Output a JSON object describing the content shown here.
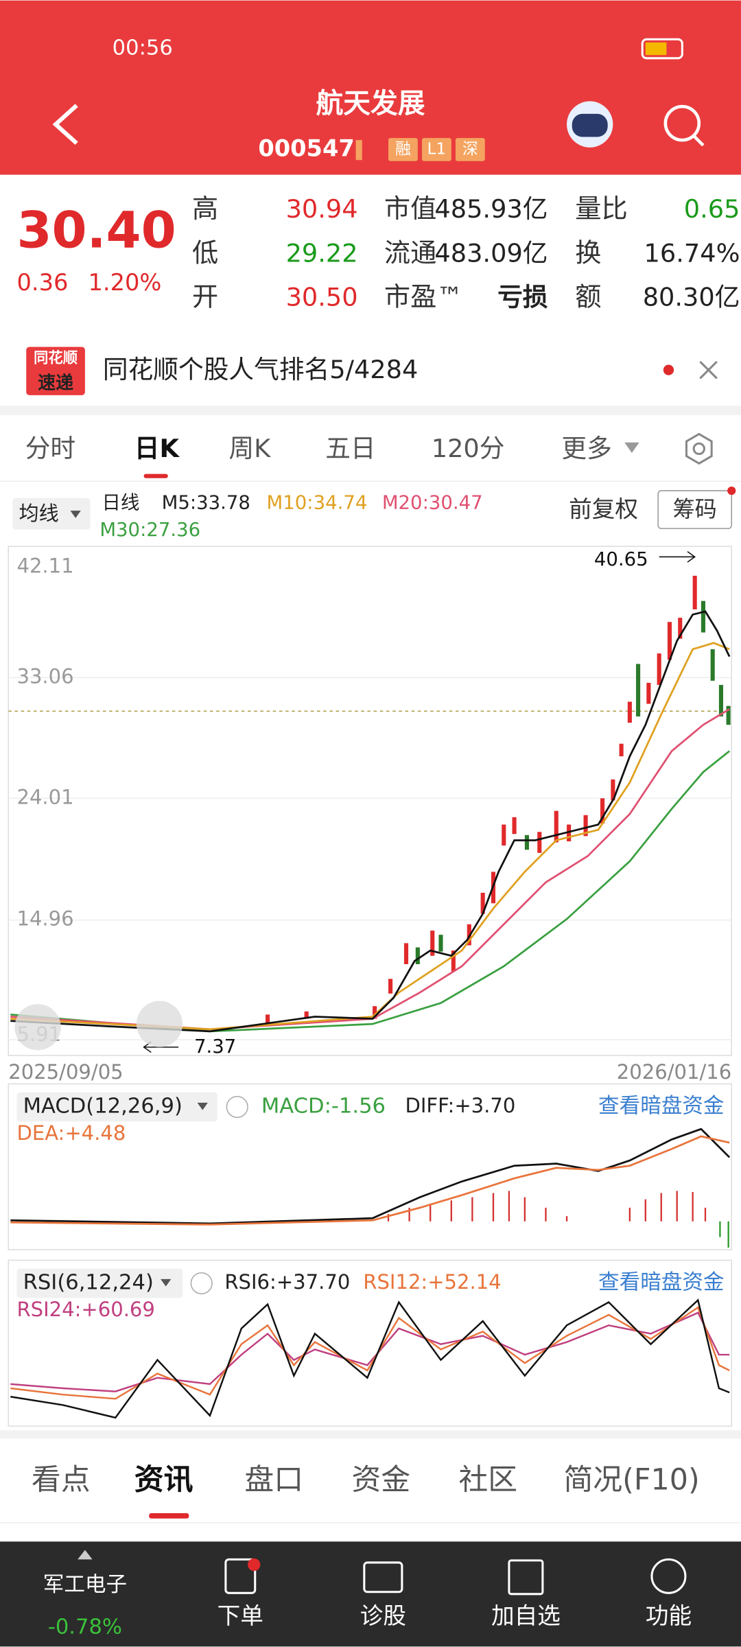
{
  "status": {
    "time": "00:56"
  },
  "header": {
    "title": "航天发展",
    "code": "000547",
    "tags": [
      "融",
      "L1",
      "深"
    ]
  },
  "quote": {
    "price": "30.40",
    "change": "0.36",
    "change_pct": "1.20%",
    "columns": [
      [
        [
          "高",
          "30.94"
        ],
        [
          "低",
          "29.22"
        ],
        [
          "开",
          "30.50"
        ]
      ],
      [
        [
          "市值",
          "485.93亿"
        ],
        [
          "流通",
          "483.09亿"
        ],
        [
          "市盈™",
          "亏损"
        ]
      ],
      [
        [
          "量比",
          "0.65"
        ],
        [
          "换",
          "16.74%"
        ],
        [
          "额",
          "80.30亿"
        ]
      ]
    ]
  },
  "banner": {
    "logo": [
      "同花顺",
      "速递"
    ],
    "text": "同花顺个股人气排名5/4284"
  },
  "tabs": [
    "分时",
    "日K",
    "周K",
    "五日",
    "120分",
    "更多"
  ],
  "kline": {
    "ma_selector": "均线",
    "legend": [
      "日线",
      "M5:33.78",
      "M10:34.74",
      "M20:30.47",
      "M30:27.36"
    ],
    "adjust": "前复权",
    "chips": "筹码",
    "yticks": [
      "42.11",
      "33.06",
      "24.01",
      "14.96",
      "5.91"
    ],
    "high": "40.65",
    "low": "7.37",
    "dates": [
      "2025/09/05",
      "2026/01/16"
    ]
  },
  "macd": {
    "title": "MACD(12,26,9)",
    "macd": "MACD:-1.56",
    "diff": "DIFF:+3.70",
    "dea": "DEA:+4.48",
    "link": "查看暗盘资金"
  },
  "rsi": {
    "title": "RSI(6,12,24)",
    "rsi6": "RSI6:+37.70",
    "rsi12": "RSI12:+52.14",
    "rsi24": "RSI24:+60.69",
    "link": "查看暗盘资金"
  },
  "bottom_tabs": [
    "看点",
    "资讯",
    "盘口",
    "资金",
    "社区",
    "简况(F10)"
  ],
  "nav": {
    "sector": "军工电子",
    "sector_change": "-0.78%",
    "items": [
      "下单",
      "诊股",
      "加自选",
      "功能"
    ]
  }
}
